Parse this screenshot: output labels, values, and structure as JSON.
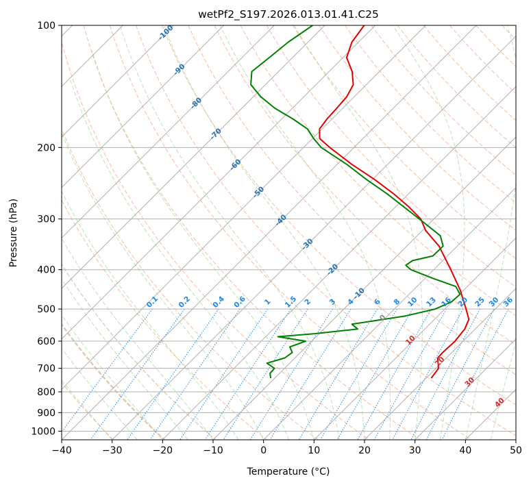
{
  "chart_data": {
    "type": "line",
    "title": "wetPf2_S197.2026.013.01.41.C25",
    "xlabel": "Temperature (°C)",
    "ylabel": "Pressure (hPa)",
    "xlim": [
      -40,
      50
    ],
    "ylim": [
      1050,
      100
    ],
    "y_scale": "log",
    "grid": true,
    "x_ticks": [
      -40,
      -30,
      -20,
      -10,
      0,
      10,
      20,
      30,
      40,
      50
    ],
    "y_ticks": [
      1000,
      900,
      800,
      700,
      600,
      500,
      400,
      300,
      200,
      100
    ],
    "skew_degrees": 45,
    "colors": {
      "temperature": "#e00000",
      "dewpoint": "#008000",
      "grid": "#b0b0b0",
      "dry_adiabat": "#f4a582",
      "moist_adiabat": "#a6d8a0",
      "mixing_ratio": "#1e88e5",
      "isotherm_labels": "#2671b2",
      "upper_labels": "#d62728"
    },
    "isotherm_labels": [
      {
        "temp": -100,
        "text": "-100"
      },
      {
        "temp": -90,
        "text": "-90"
      },
      {
        "temp": -80,
        "text": "-80"
      },
      {
        "temp": -70,
        "text": "-70"
      },
      {
        "temp": -60,
        "text": "-60"
      },
      {
        "temp": -50,
        "text": "-50"
      },
      {
        "temp": -40,
        "text": "-40"
      },
      {
        "temp": -30,
        "text": "-30"
      },
      {
        "temp": -20,
        "text": "-20"
      },
      {
        "temp": -10,
        "text": "-10"
      }
    ],
    "lower_isotherm_labels": [
      {
        "temp": 0,
        "text": "0"
      },
      {
        "temp": 10,
        "text": "10"
      },
      {
        "temp": 20,
        "text": "20"
      },
      {
        "temp": 30,
        "text": "30"
      },
      {
        "temp": 40,
        "text": "40"
      }
    ],
    "mixing_ratio_labels": [
      "0.1",
      "0.2",
      "0.4",
      "0.6",
      "1",
      "1.5",
      "2",
      "3",
      "4",
      "6",
      "8",
      "10",
      "13",
      "16",
      "20",
      "25",
      "30",
      "36"
    ],
    "mixing_ratio_surface_temps": [
      -34,
      -26.5,
      -19.5,
      -14.5,
      -9,
      -4,
      -0.5,
      5,
      9.2,
      15,
      19.6,
      23,
      26.6,
      29.8,
      33,
      36.5,
      39.3,
      42.5
    ],
    "series": [
      {
        "name": "Temperature",
        "points": [
          {
            "p": 740,
            "t": 21
          },
          {
            "p": 700,
            "t": 20.5
          },
          {
            "p": 660,
            "t": 18.3
          },
          {
            "p": 640,
            "t": 18.2
          },
          {
            "p": 600,
            "t": 18.4
          },
          {
            "p": 560,
            "t": 17.9
          },
          {
            "p": 530,
            "t": 16.8
          },
          {
            "p": 500,
            "t": 14.2
          },
          {
            "p": 450,
            "t": 9.4
          },
          {
            "p": 400,
            "t": 3.4
          },
          {
            "p": 350,
            "t": -3.6
          },
          {
            "p": 320,
            "t": -9.4
          },
          {
            "p": 300,
            "t": -12.6
          },
          {
            "p": 280,
            "t": -17.4
          },
          {
            "p": 260,
            "t": -23
          },
          {
            "p": 240,
            "t": -29.5
          },
          {
            "p": 220,
            "t": -37.1
          },
          {
            "p": 200,
            "t": -44.8
          },
          {
            "p": 190,
            "t": -48.6
          },
          {
            "p": 180,
            "t": -50.5
          },
          {
            "p": 170,
            "t": -51
          },
          {
            "p": 160,
            "t": -51.2
          },
          {
            "p": 150,
            "t": -51.5
          },
          {
            "p": 140,
            "t": -52.6
          },
          {
            "p": 130,
            "t": -55.4
          },
          {
            "p": 120,
            "t": -59.3
          },
          {
            "p": 110,
            "t": -61.3
          },
          {
            "p": 100,
            "t": -62.2
          }
        ]
      },
      {
        "name": "Dewpoint",
        "points": [
          {
            "p": 740,
            "t": -10.8
          },
          {
            "p": 720,
            "t": -11.9
          },
          {
            "p": 700,
            "t": -12
          },
          {
            "p": 680,
            "t": -14.5
          },
          {
            "p": 660,
            "t": -12
          },
          {
            "p": 640,
            "t": -11.6
          },
          {
            "p": 620,
            "t": -13.2
          },
          {
            "p": 600,
            "t": -11.2
          },
          {
            "p": 585,
            "t": -17.6
          },
          {
            "p": 575,
            "t": -10.9
          },
          {
            "p": 560,
            "t": -3.3
          },
          {
            "p": 545,
            "t": -5.4
          },
          {
            "p": 520,
            "t": 3.6
          },
          {
            "p": 500,
            "t": 8.1
          },
          {
            "p": 480,
            "t": 9.9
          },
          {
            "p": 460,
            "t": 10.1
          },
          {
            "p": 440,
            "t": 7.7
          },
          {
            "p": 420,
            "t": 1.5
          },
          {
            "p": 400,
            "t": -4.5
          },
          {
            "p": 390,
            "t": -6.4
          },
          {
            "p": 380,
            "t": -6
          },
          {
            "p": 370,
            "t": -2.9
          },
          {
            "p": 350,
            "t": -2.8
          },
          {
            "p": 330,
            "t": -5.4
          },
          {
            "p": 310,
            "t": -10.3
          },
          {
            "p": 290,
            "t": -15.6
          },
          {
            "p": 260,
            "t": -24.3
          },
          {
            "p": 240,
            "t": -31.1
          },
          {
            "p": 220,
            "t": -38.1
          },
          {
            "p": 200,
            "t": -46.5
          },
          {
            "p": 190,
            "t": -49.8
          },
          {
            "p": 180,
            "t": -52.9
          },
          {
            "p": 170,
            "t": -57.8
          },
          {
            "p": 160,
            "t": -63.5
          },
          {
            "p": 150,
            "t": -68.5
          },
          {
            "p": 140,
            "t": -72.9
          },
          {
            "p": 130,
            "t": -75.3
          },
          {
            "p": 120,
            "t": -74.6
          },
          {
            "p": 110,
            "t": -73.9
          },
          {
            "p": 100,
            "t": -72.4
          }
        ]
      }
    ]
  }
}
